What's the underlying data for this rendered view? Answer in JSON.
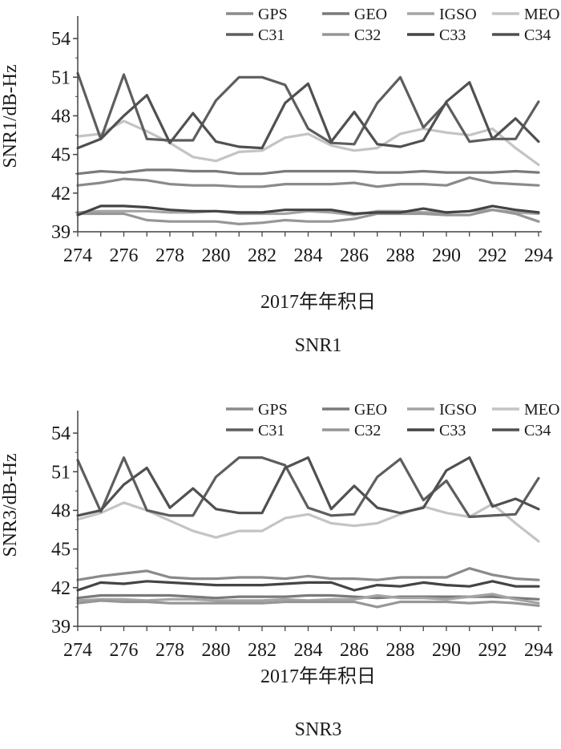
{
  "chart_data": [
    {
      "type": "line",
      "title": "SNR1",
      "xlabel": "2017年年积日",
      "ylabel": "SNR1/dB-Hz",
      "ylim": [
        39,
        55
      ],
      "yticks": [
        39,
        42,
        45,
        48,
        51,
        54
      ],
      "x": [
        274,
        275,
        276,
        277,
        278,
        279,
        280,
        281,
        282,
        283,
        284,
        285,
        286,
        287,
        288,
        289,
        290,
        291,
        292,
        293,
        294
      ],
      "xticks": [
        274,
        276,
        278,
        280,
        282,
        284,
        286,
        288,
        290,
        292,
        294
      ],
      "grid": false,
      "legend": "top-right",
      "series": [
        {
          "name": "GPS",
          "color": "#8a8a8a",
          "values": [
            42.6,
            42.8,
            43.1,
            43.0,
            42.7,
            42.6,
            42.6,
            42.5,
            42.5,
            42.7,
            42.7,
            42.7,
            42.8,
            42.5,
            42.7,
            42.7,
            42.6,
            43.2,
            42.8,
            42.7,
            42.6
          ]
        },
        {
          "name": "GEO",
          "color": "#7a7a7a",
          "values": [
            43.5,
            43.7,
            43.6,
            43.8,
            43.8,
            43.7,
            43.7,
            43.5,
            43.5,
            43.7,
            43.7,
            43.7,
            43.7,
            43.6,
            43.6,
            43.7,
            43.6,
            43.6,
            43.6,
            43.7,
            43.6
          ]
        },
        {
          "name": "IGSO",
          "color": "#a4a4a4",
          "values": [
            40.5,
            40.6,
            40.6,
            40.6,
            40.5,
            40.5,
            40.6,
            40.4,
            40.4,
            40.4,
            40.6,
            40.5,
            40.3,
            40.6,
            40.6,
            40.5,
            40.5,
            40.6,
            40.7,
            40.5,
            40.4
          ]
        },
        {
          "name": "MEO",
          "color": "#c4c4c4",
          "values": [
            46.4,
            46.6,
            47.6,
            46.8,
            45.9,
            44.8,
            44.5,
            45.2,
            45.3,
            46.3,
            46.6,
            45.7,
            45.3,
            45.5,
            46.6,
            47.0,
            46.7,
            46.5,
            47.0,
            45.5,
            44.2
          ]
        },
        {
          "name": "C31",
          "color": "#5e5e5e",
          "values": [
            51.3,
            46.2,
            51.2,
            46.2,
            46.1,
            46.1,
            49.2,
            51.0,
            51.0,
            50.4,
            47.0,
            45.9,
            45.8,
            49.0,
            51.0,
            47.1,
            49.0,
            46.0,
            46.2,
            46.2,
            49.1
          ]
        },
        {
          "name": "C32",
          "color": "#969696",
          "values": [
            40.4,
            40.4,
            40.4,
            39.9,
            39.8,
            39.8,
            39.8,
            39.6,
            39.7,
            39.9,
            39.8,
            39.8,
            40.0,
            40.4,
            40.4,
            40.4,
            40.3,
            40.3,
            40.7,
            40.4,
            39.8
          ]
        },
        {
          "name": "C33",
          "color": "#444444",
          "values": [
            40.3,
            41.0,
            41.0,
            40.9,
            40.7,
            40.6,
            40.6,
            40.5,
            40.5,
            40.7,
            40.7,
            40.7,
            40.4,
            40.5,
            40.5,
            40.8,
            40.5,
            40.6,
            41.0,
            40.7,
            40.5
          ]
        },
        {
          "name": "C34",
          "color": "#505050",
          "values": [
            45.5,
            46.2,
            48.0,
            49.6,
            45.9,
            48.2,
            46.0,
            45.6,
            45.5,
            49.0,
            50.5,
            46.0,
            48.3,
            45.8,
            45.6,
            46.1,
            49.1,
            50.6,
            46.2,
            47.8,
            46.0
          ]
        }
      ]
    },
    {
      "type": "line",
      "title": "SNR3",
      "xlabel": "2017年年积日",
      "ylabel": "SNR3/dB-Hz",
      "ylim": [
        39,
        55
      ],
      "yticks": [
        39,
        42,
        45,
        48,
        51,
        54
      ],
      "x": [
        274,
        275,
        276,
        277,
        278,
        279,
        280,
        281,
        282,
        283,
        284,
        285,
        286,
        287,
        288,
        289,
        290,
        291,
        292,
        293,
        294
      ],
      "xticks": [
        274,
        276,
        278,
        280,
        282,
        284,
        286,
        288,
        290,
        292,
        294
      ],
      "grid": false,
      "legend": "top-right",
      "series": [
        {
          "name": "GPS",
          "color": "#8a8a8a",
          "values": [
            42.6,
            42.9,
            43.1,
            43.3,
            42.8,
            42.7,
            42.7,
            42.8,
            42.8,
            42.7,
            42.9,
            42.7,
            42.7,
            42.6,
            42.8,
            42.8,
            42.8,
            43.5,
            43.0,
            42.7,
            42.6
          ]
        },
        {
          "name": "GEO",
          "color": "#7a7a7a",
          "values": [
            41.2,
            41.4,
            41.4,
            41.4,
            41.4,
            41.3,
            41.2,
            41.3,
            41.3,
            41.3,
            41.4,
            41.4,
            41.3,
            41.2,
            41.3,
            41.3,
            41.3,
            41.3,
            41.3,
            41.2,
            41.1
          ]
        },
        {
          "name": "IGSO",
          "color": "#a4a4a4",
          "values": [
            41.0,
            41.1,
            41.1,
            41.0,
            41.1,
            41.1,
            41.0,
            41.0,
            41.0,
            41.1,
            41.0,
            41.1,
            41.1,
            41.4,
            41.2,
            41.2,
            41.1,
            41.3,
            41.5,
            41.1,
            40.8
          ]
        },
        {
          "name": "MEO",
          "color": "#c4c4c4",
          "values": [
            47.3,
            47.8,
            48.6,
            48.0,
            47.2,
            46.4,
            45.9,
            46.4,
            46.4,
            47.4,
            47.7,
            47.0,
            46.8,
            47.0,
            47.7,
            48.3,
            47.8,
            47.5,
            48.5,
            47.0,
            45.6
          ]
        },
        {
          "name": "C31",
          "color": "#5e5e5e",
          "values": [
            51.9,
            47.9,
            52.1,
            48.0,
            47.6,
            47.6,
            50.6,
            52.1,
            52.1,
            51.5,
            48.2,
            47.6,
            47.7,
            50.6,
            52.0,
            48.8,
            50.3,
            47.5,
            47.6,
            47.7,
            50.5
          ]
        },
        {
          "name": "C32",
          "color": "#969696",
          "values": [
            40.8,
            41.0,
            40.9,
            40.9,
            40.8,
            40.8,
            40.8,
            40.8,
            40.8,
            40.9,
            40.9,
            40.9,
            40.9,
            40.5,
            40.9,
            40.9,
            40.9,
            40.8,
            40.9,
            40.8,
            40.6
          ]
        },
        {
          "name": "C33",
          "color": "#444444",
          "values": [
            41.8,
            42.4,
            42.3,
            42.5,
            42.4,
            42.3,
            42.2,
            42.2,
            42.2,
            42.3,
            42.4,
            42.4,
            41.8,
            42.2,
            42.1,
            42.4,
            42.2,
            42.1,
            42.5,
            42.1,
            42.1
          ]
        },
        {
          "name": "C34",
          "color": "#505050",
          "values": [
            47.6,
            48.0,
            50.0,
            51.3,
            48.2,
            49.7,
            48.1,
            47.8,
            47.8,
            51.3,
            52.1,
            48.1,
            49.9,
            48.2,
            47.8,
            48.2,
            51.1,
            52.1,
            48.3,
            48.9,
            48.1
          ]
        }
      ]
    }
  ]
}
